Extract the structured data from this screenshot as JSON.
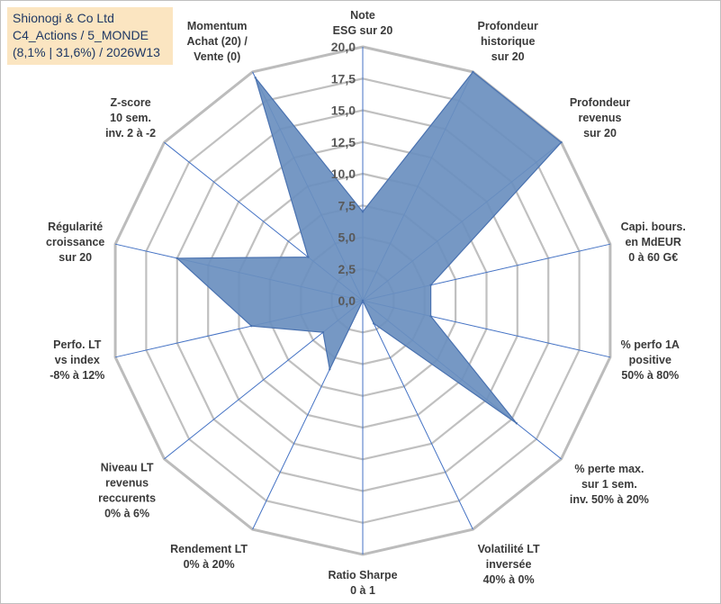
{
  "title_box": {
    "line1": "Shionogi & Co Ltd",
    "line2": "C4_Actions / 5_MONDE",
    "line3": "(8,1% | 31,6%) / 2026W13"
  },
  "colors": {
    "fill": "#6a8fbf",
    "stroke": "#4a72b0",
    "spoke": "#4472c4",
    "ring": "#c0c0c0",
    "outer_ring": "#bcbcbc",
    "title_bg": "#fbe5c1"
  },
  "chart_data": {
    "type": "radar",
    "r_min": 0,
    "r_max": 20,
    "ticks": [
      0,
      2.5,
      5,
      7.5,
      10,
      12.5,
      15,
      17.5,
      20
    ],
    "tick_labels": [
      "0,0",
      "2,5",
      "5,0",
      "7,5",
      "10,0",
      "12,5",
      "15,0",
      "17,5",
      "20,0"
    ],
    "axes": [
      {
        "label": [
          "Note",
          "ESG sur 20"
        ],
        "value": 7.0
      },
      {
        "label": [
          "Profondeur",
          "historique",
          "sur 20"
        ],
        "value": 20.0
      },
      {
        "label": [
          "Profondeur",
          "revenus",
          "sur 20"
        ],
        "value": 20.0
      },
      {
        "label": [
          "Capi. bours.",
          "en MdEUR",
          "0 à 60 G€"
        ],
        "value": 5.5
      },
      {
        "label": [
          "% perfo 1A",
          "positive",
          "50% à 80%"
        ],
        "value": 5.5
      },
      {
        "label": [
          "% perte max.",
          "sur 1 sem.",
          "inv. 50% à 20%"
        ],
        "value": 15.5
      },
      {
        "label": [
          "Volatilité LT",
          "inversée",
          "40% à 0%"
        ],
        "value": 2.0
      },
      {
        "label": [
          "Ratio Sharpe",
          "0 à 1"
        ],
        "value": 0.0
      },
      {
        "label": [
          "Rendement LT",
          "0% à 20%"
        ],
        "value": 6.0
      },
      {
        "label": [
          "Niveau LT",
          "revenus",
          "reccurents",
          "0% à 6%"
        ],
        "value": 4.0
      },
      {
        "label": [
          "Perfo. LT",
          "vs index",
          "-8% à 12%"
        ],
        "value": 9.0
      },
      {
        "label": [
          "Régularité",
          "croissance",
          "sur 20"
        ],
        "value": 15.0
      },
      {
        "label": [
          "Z-score",
          "10 sem.",
          "inv. 2 à -2"
        ],
        "value": 5.5
      },
      {
        "label": [
          "Momentum",
          "Achat (20) /",
          "Vente (0)"
        ],
        "value": 19.5
      }
    ]
  }
}
